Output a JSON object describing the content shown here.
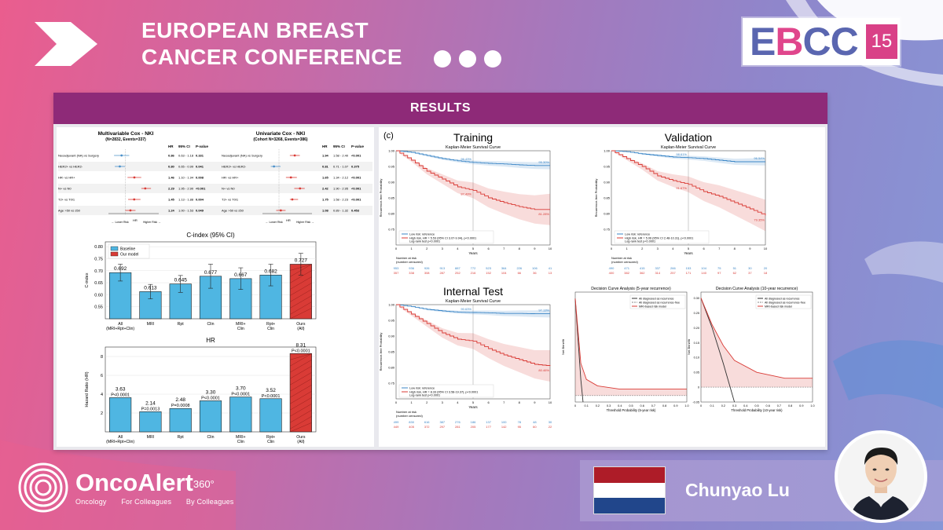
{
  "header": {
    "title_line1": "EUROPEAN BREAST",
    "title_line2": "CANCER CONFERENCE",
    "badge_letters": [
      "E",
      "B",
      "CC"
    ],
    "badge_number": "15"
  },
  "panel": {
    "heading": "RESULTS"
  },
  "forest": {
    "left_title": "Multivariable Cox - NKI",
    "left_subtitle": "(N=2832, Events=337)",
    "right_title": "Univariate Cox - NKI",
    "right_subtitle": "(Cohort N=3268, Events=386)",
    "col_hr": "HR",
    "col_ci": "95% CI",
    "col_p": "P-value",
    "rows": [
      {
        "label": "Neoadjuvant (NA) vs Surgery",
        "hr": "0.86",
        "ci": "0.63 - 1.18",
        "p": "0.331",
        "uhr": "1.94",
        "uci": "1.58 - 2.40",
        "up": "<0.001"
      },
      {
        "label": "HER2+ vs HER2-",
        "hr": "0.80",
        "ci": "0.65 - 0.99",
        "p": "0.041",
        "uhr": "0.81",
        "uci": "0.71 - 1.07",
        "up": "0.375"
      },
      {
        "label": "HR- vs HR+",
        "hr": "1.46",
        "ci": "1.10 - 1.94",
        "p": "0.008",
        "uhr": "1.65",
        "uci": "1.34 - 2.12",
        "up": "<0.001"
      },
      {
        "label": "N+ vs N0",
        "hr": "2.29",
        "ci": "1.95 - 2.90",
        "p": "<0.001",
        "uhr": "2.42",
        "uci": "1.90 - 2.95",
        "up": "<0.001"
      },
      {
        "label": "T2+ vs T0/1",
        "hr": "1.45",
        "ci": "1.13 - 1.88",
        "p": "0.004",
        "uhr": "1.75",
        "uci": "1.58 - 2.23",
        "up": "<0.001"
      },
      {
        "label": "Age >50 vs ≤50",
        "hr": "1.24",
        "ci": "1.00 - 1.53",
        "p": "0.049",
        "uhr": "1.08",
        "uci": "0.89 - 1.32",
        "up": "0.453"
      }
    ],
    "axis_left": "← Lower Risk",
    "axis_mid": "HR",
    "axis_right": "Higher Risk →"
  },
  "chart_data": [
    {
      "type": "bar",
      "title": "C-index (95% CI)",
      "ylabel": "C-index",
      "categories": [
        "All\n(MRI+Rpt+Clin)",
        "MRI",
        "Rpt",
        "Clin",
        "MRI+\nClin",
        "Rpt+\nClin",
        "Ours\n(All)"
      ],
      "values": [
        0.692,
        0.613,
        0.645,
        0.677,
        0.667,
        0.682,
        0.727
      ],
      "labels": [
        "0.692",
        "0.613",
        "0.645",
        "0.677",
        "0.667",
        "0.682",
        "0.727"
      ],
      "ylim": [
        0.5,
        0.82
      ],
      "yticks": [
        "0.55",
        "0.60",
        "0.65",
        "0.70",
        "0.75",
        "0.80"
      ],
      "legend": [
        "Baseline",
        "Our model"
      ],
      "colors": {
        "baseline": "#4fb6e2",
        "ours": "#d93b36"
      }
    },
    {
      "type": "bar",
      "title": "HR",
      "ylabel": "Hazard Ratio (HR)",
      "categories": [
        "All\n(MRI+Rpt+Clin)",
        "MRI",
        "Rpt",
        "Clin",
        "MRI+\nClin",
        "Rpt+\nClin",
        "Ours\n(All)"
      ],
      "values": [
        3.63,
        2.14,
        2.48,
        3.3,
        3.7,
        3.52,
        8.31
      ],
      "labels": [
        "3.63",
        "2.14",
        "2.48",
        "3.30",
        "3.70",
        "3.52",
        "8.31"
      ],
      "pvalues": [
        "P<0.0001",
        "P=0.0013",
        "P=0.0008",
        "P<0.0001",
        "P<0.0001",
        "P<0.0001",
        "P<0.0001"
      ],
      "ylim": [
        0,
        9
      ],
      "yticks": [
        "2",
        "4",
        "6",
        "8"
      ]
    },
    {
      "type": "line",
      "panel_tag": "(c)",
      "title": "Training",
      "subtitle": "Kaplan-Meier Survival Curve",
      "ylabel": "Recurrence-free Probability",
      "xlabel": "Years",
      "series": [
        {
          "name": "Low risk: reference",
          "end_label": "95.30%",
          "x": [
            0,
            1,
            2,
            3,
            4,
            5,
            6,
            7,
            8,
            9,
            10
          ],
          "y": [
            1.0,
            0.995,
            0.985,
            0.975,
            0.968,
            0.963,
            0.96,
            0.958,
            0.955,
            0.953,
            0.953
          ]
        },
        {
          "name": "High risk, HR = 5.53 (95% CI 3.07-9.94), p<0.0001",
          "end_label": "81.28%",
          "x": [
            0,
            1,
            2,
            3,
            4,
            5,
            6,
            7,
            8,
            9,
            10
          ],
          "y": [
            1.0,
            0.97,
            0.935,
            0.91,
            0.885,
            0.874,
            0.85,
            0.835,
            0.822,
            0.813,
            0.813
          ]
        }
      ],
      "annotations": [
        "96.43%",
        "87.49%"
      ],
      "logrank": "Log-rank test p<0.0001",
      "at_risk_title": "Number at risk\n(number censored)",
      "at_risk_low": [
        "953",
        "936",
        "926",
        "913",
        "887",
        "772",
        "523",
        "364",
        "226",
        "106",
        "41"
      ],
      "at_risk_high": [
        "357",
        "338",
        "308",
        "287",
        "252",
        "216",
        "152",
        "104",
        "66",
        "36",
        "13"
      ],
      "ylim": [
        0.7,
        1.0
      ]
    },
    {
      "type": "line",
      "title": "Validation",
      "subtitle": "Kaplan-Meier Survival Curve",
      "ylabel": "Recurrence-free Probability",
      "xlabel": "Years",
      "series": [
        {
          "name": "Low risk: reference",
          "end_label": "96.54%",
          "x": [
            0,
            1,
            2,
            3,
            4,
            5,
            6,
            7,
            8,
            9,
            10
          ],
          "y": [
            1.0,
            0.997,
            0.99,
            0.985,
            0.98,
            0.978,
            0.975,
            0.97,
            0.965,
            0.965,
            0.965
          ]
        },
        {
          "name": "High risk, HR = 5.06 (95% CI 2.48-10.31), p<0.0001",
          "end_label": "79.35%",
          "x": [
            0,
            1,
            2,
            3,
            4,
            5,
            6,
            7,
            8,
            9,
            10
          ],
          "y": [
            1.0,
            0.975,
            0.95,
            0.92,
            0.905,
            0.893,
            0.87,
            0.855,
            0.835,
            0.815,
            0.794
          ]
        }
      ],
      "annotations": [
        "98.61%",
        "91.67%"
      ],
      "logrank": "Log-rank test p<0.0001",
      "at_risk_title": "Number at risk\n(number censored)",
      "at_risk_low": [
        "490",
        "471",
        "415",
        "337",
        "266",
        "153",
        "104",
        "75",
        "51",
        "30",
        "20"
      ],
      "at_risk_high": [
        "400",
        "382",
        "362",
        "314",
        "257",
        "171",
        "140",
        "97",
        "62",
        "37",
        "18"
      ],
      "ylim": [
        0.7,
        1.0
      ]
    },
    {
      "type": "line",
      "title": "Internal Test",
      "subtitle": "Kaplan-Meier Survival Curve",
      "ylabel": "Recurrence-free Probability",
      "xlabel": "Years",
      "series": [
        {
          "name": "Low risk: reference",
          "end_label": "97.13%",
          "x": [
            0,
            1,
            2,
            3,
            4,
            5,
            6,
            7,
            8,
            9,
            10
          ],
          "y": [
            1.0,
            0.994,
            0.985,
            0.98,
            0.976,
            0.975,
            0.974,
            0.972,
            0.972,
            0.971,
            0.971
          ]
        },
        {
          "name": "High risk, HR = 8.33 (95% CI 3.58-19.37), p<0.0001",
          "end_label": "80.46%",
          "x": [
            0,
            1,
            2,
            3,
            4,
            5,
            6,
            7,
            8,
            9,
            10
          ],
          "y": [
            1.0,
            0.97,
            0.94,
            0.91,
            0.89,
            0.884,
            0.86,
            0.84,
            0.825,
            0.81,
            0.805
          ]
        }
      ],
      "annotations": [
        "90.63%"
      ],
      "logrank": "Log-rank test p<0.0001",
      "at_risk_title": "Number at risk\n(number censored)",
      "at_risk_low": [
        "499",
        "830",
        "616",
        "387",
        "276",
        "186",
        "137",
        "100",
        "78",
        "48",
        "30"
      ],
      "at_risk_high": [
        "449",
        "405",
        "372",
        "297",
        "281",
        "205",
        "177",
        "142",
        "95",
        "60",
        "22"
      ],
      "ylim": [
        0.7,
        1.0
      ]
    },
    {
      "type": "line",
      "title": "Decision Curve Analysis (5-year recurrence)",
      "xlabel": "Threshold Probability (5-year risk)",
      "ylabel": "Net Benefit",
      "legend": [
        "All diagnosed as recurrence",
        "All diagnosed as recurrence-free",
        "MRI-based risk model"
      ],
      "xticks": [
        "0",
        "0.1",
        "0.2",
        "0.3",
        "0.4",
        "0.5",
        "0.6",
        "0.7",
        "0.8",
        "0.9",
        "1.0"
      ],
      "ylim": [
        -0.02,
        0.32
      ],
      "series": [
        {
          "name": "All diagnosed as recurrence",
          "x": [
            0,
            0.02,
            0.05,
            0.07
          ],
          "y": [
            0.3,
            0.2,
            0.05,
            -0.02
          ]
        },
        {
          "name": "MRI-based risk model",
          "x": [
            0,
            0.05,
            0.1,
            0.2,
            0.4,
            1.0
          ],
          "y": [
            0.3,
            0.1,
            0.05,
            0.03,
            0.02,
            0.02
          ]
        }
      ]
    },
    {
      "type": "line",
      "title": "Decision Curve Analysis (10-year recurrence)",
      "xlabel": "Threshold Probability (10-year risk)",
      "ylabel": "Net Benefit",
      "legend": [
        "All diagnosed as recurrence",
        "All diagnosed as recurrence-free",
        "MRI-based risk model"
      ],
      "xticks": [
        "0",
        "0.1",
        "0.2",
        "0.3",
        "0.4",
        "0.5",
        "0.6",
        "0.7",
        "0.8",
        "0.9",
        "1.0"
      ],
      "yticks": [
        "-0.05",
        "0",
        "0.05",
        "0.10",
        "0.15",
        "0.20",
        "0.25",
        "0.30"
      ],
      "ylim": [
        -0.05,
        0.32
      ],
      "series": [
        {
          "name": "All diagnosed as recurrence",
          "x": [
            0,
            0.1,
            0.2,
            0.3
          ],
          "y": [
            0.3,
            0.2,
            0.08,
            -0.05
          ]
        },
        {
          "name": "MRI-based risk model",
          "x": [
            0,
            0.1,
            0.2,
            0.3,
            0.5,
            0.75,
            1.0
          ],
          "y": [
            0.3,
            0.21,
            0.14,
            0.09,
            0.05,
            0.03,
            0.03
          ]
        }
      ]
    }
  ],
  "branding": {
    "logo_name": "OncoAlert",
    "logo_sup": "360°",
    "tag1": "Oncology",
    "tag2": "For Colleagues",
    "tag3": "By Colleagues"
  },
  "speaker": {
    "name": "Chunyao Lu",
    "flag_colors": [
      "#ae1c28",
      "#ffffff",
      "#21468b"
    ]
  }
}
